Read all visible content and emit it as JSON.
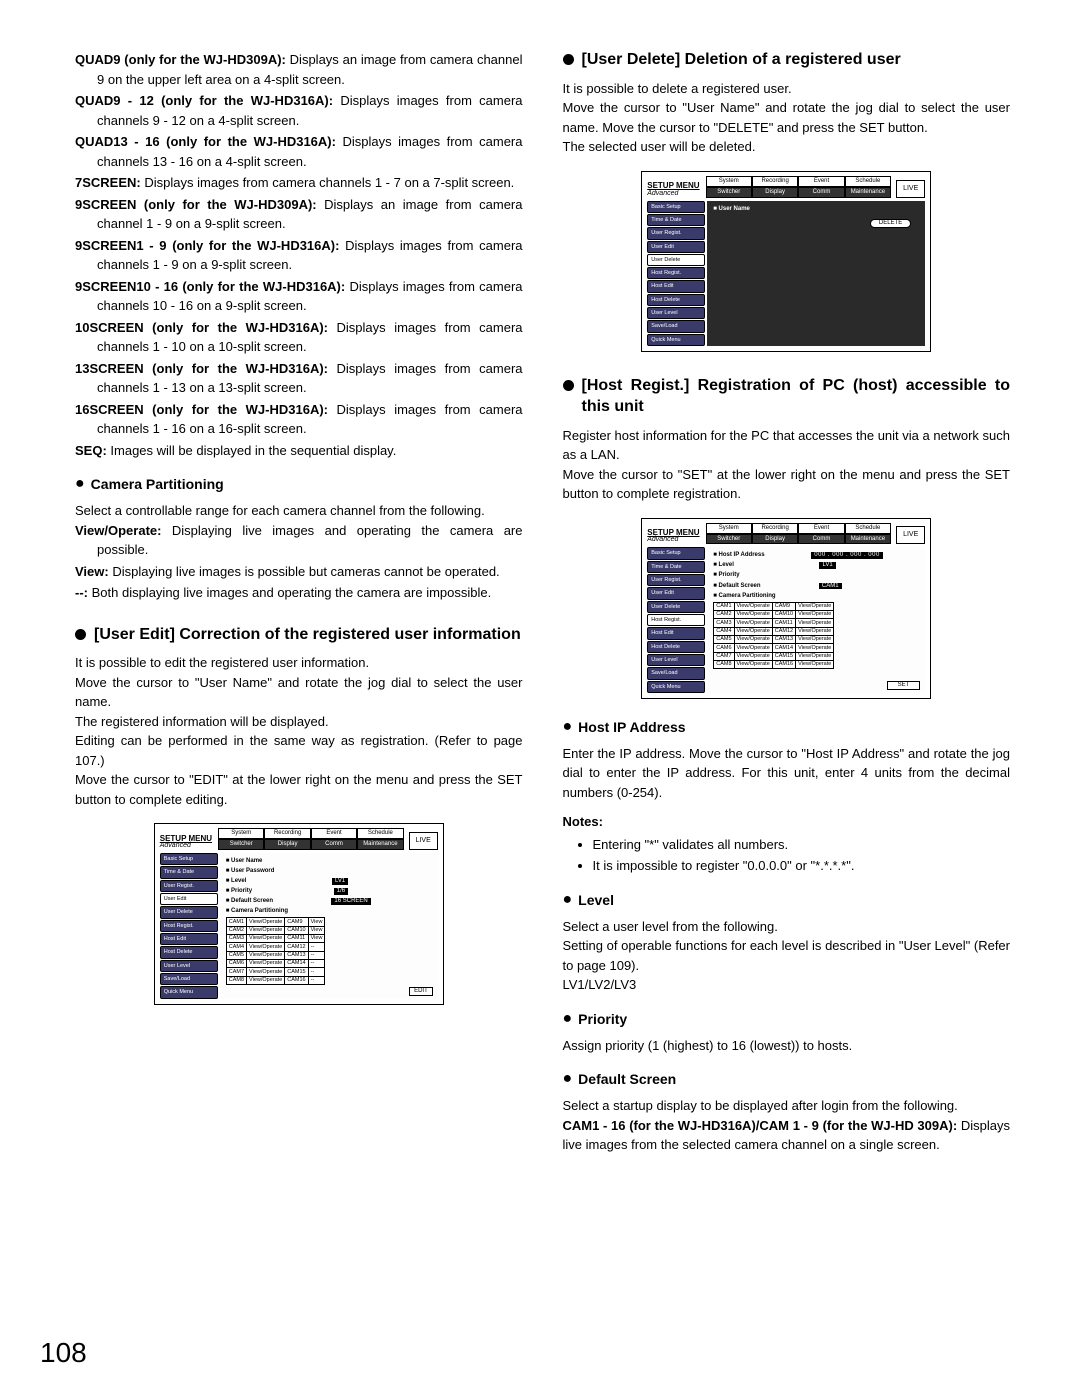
{
  "left": {
    "items": [
      {
        "term": "QUAD9 (only for the WJ-HD309A):",
        "desc": "Displays an image from camera channel 9 on the upper left area on a 4-split screen."
      },
      {
        "term": "QUAD9 - 12 (only for the WJ-HD316A):",
        "desc": "Displays images from camera channels 9 - 12 on a 4-split screen."
      },
      {
        "term": "QUAD13 - 16 (only for the WJ-HD316A):",
        "desc": "Displays images from camera channels 13 - 16 on a 4-split screen."
      },
      {
        "term": "7SCREEN:",
        "desc": "Displays images from camera channels 1 - 7 on a 7-split screen."
      },
      {
        "term": "9SCREEN (only for the WJ-HD309A):",
        "desc": "Displays an image from camera channel 1 - 9 on a 9-split screen."
      },
      {
        "term": "9SCREEN1 - 9 (only for the WJ-HD316A):",
        "desc": "Displays images from camera channels 1 - 9 on a 9-split screen."
      },
      {
        "term": "9SCREEN10 - 16 (only for the WJ-HD316A):",
        "desc": "Displays images from camera channels 10 - 16 on a 9-split screen."
      },
      {
        "term": "10SCREEN (only for the WJ-HD316A):",
        "desc": "Displays images from camera channels 1 - 10 on a 10-split screen."
      },
      {
        "term": "13SCREEN (only for the WJ-HD316A):",
        "desc": "Displays images from camera channels 1 - 13 on a 13-split screen."
      },
      {
        "term": "16SCREEN (only for the WJ-HD316A):",
        "desc": "Displays images from camera channels 1 - 16 on a 16-split screen."
      },
      {
        "term": "SEQ:",
        "desc": "Images will be displayed in the sequential display."
      }
    ],
    "camPart": {
      "head": "Camera Partitioning",
      "intro": "Select a controllable range for each camera channel from the following.",
      "opts": [
        {
          "term": "View/Operate:",
          "desc": "Displaying live images and operating the camera are possible."
        },
        {
          "term": "View:",
          "desc": "Displaying live images is possible but cameras cannot be operated."
        },
        {
          "term": "--:",
          "desc": "Both displaying live images and operating the camera are impossible."
        }
      ]
    },
    "userEdit": {
      "head": "[User Edit] Correction of the registered user information",
      "p1": "It is possible to edit the registered user information.",
      "p2": "Move the cursor to \"User Name\" and rotate the jog dial to select the user name.",
      "p3": "The registered information will be displayed.",
      "p4": "Editing can be performed in the same way as registration. (Refer to page 107.)",
      "p5": "Move the cursor to \"EDIT\" at the lower right on the menu and press the SET button to complete editing."
    }
  },
  "right": {
    "userDelete": {
      "head": "[User Delete] Deletion of a registered user",
      "p1": "It is possible to delete a registered user.",
      "p2": "Move the cursor to \"User Name\" and rotate the jog dial to select the user name. Move the cursor to \"DELETE\" and press the SET button.",
      "p3": "The selected user will be deleted."
    },
    "hostRegist": {
      "head": "[Host Regist.] Registration of PC (host) accessible to this unit",
      "p1": "Register host information for the PC that accesses the unit via a network such as a LAN.",
      "p2": "Move the cursor to \"SET\" at the lower right on the menu and press the SET button to complete registration."
    },
    "hostIp": {
      "head": "Host IP Address",
      "p": "Enter the IP address. Move the cursor to \"Host IP Address\" and rotate the jog dial to enter the IP address. For this unit, enter 4 units from the decimal numbers (0-254)."
    },
    "notes": {
      "head": "Notes:",
      "items": [
        "Entering \"*\" validates all numbers.",
        "It is impossible to register \"0.0.0.0\" or \"*.*.*.*\"."
      ]
    },
    "level": {
      "head": "Level",
      "p1": "Select a user level from the following.",
      "p2": "Setting of operable functions for each level is described in \"User Level\" (Refer to page 109).",
      "p3": "LV1/LV2/LV3"
    },
    "priority": {
      "head": "Priority",
      "p": "Assign priority (1 (highest) to 16 (lowest)) to hosts."
    },
    "defScreen": {
      "head": "Default Screen",
      "p": "Select a startup display to be displayed after login from the following.",
      "term": "CAM1 - 16 (for the WJ-HD316A)/CAM 1 - 9 (for the WJ-HD 309A):",
      "desc": "Displays live images from the selected camera channel on a single screen."
    }
  },
  "menu": {
    "title": "SETUP MENU",
    "adv": "Advanced",
    "tabs_top": [
      "System",
      "Recording",
      "Event",
      "Schedule"
    ],
    "tabs_bot": [
      "Switcher",
      "Display",
      "Comm",
      "Maintenance"
    ],
    "live": "LIVE",
    "sidebar": [
      "Basic Setup",
      "Time & Date",
      "User Regist.",
      "User Edit",
      "User Delete",
      "Host Regist.",
      "Host Edit",
      "Host Delete",
      "User Level",
      "Save/Load",
      "Quick Menu"
    ],
    "userEdit": {
      "labels": [
        "User Name",
        "User Password",
        "Level",
        "Priority",
        "Default Screen",
        "Camera Partitioning"
      ],
      "level_val": "LV1",
      "pri_val": "1/6",
      "ds_val": "16 SCREEN",
      "rows": [
        [
          "CAM1",
          "View/Operate",
          "CAM9",
          "View"
        ],
        [
          "CAM2",
          "View/Operate",
          "CAM10",
          "View"
        ],
        [
          "CAM3",
          "View/Operate",
          "CAM11",
          "View"
        ],
        [
          "CAM4",
          "View/Operate",
          "CAM12",
          "--"
        ],
        [
          "CAM5",
          "View/Operate",
          "CAM13",
          "--"
        ],
        [
          "CAM6",
          "View/Operate",
          "CAM14",
          "--"
        ],
        [
          "CAM7",
          "View/Operate",
          "CAM15",
          "--"
        ],
        [
          "CAM8",
          "View/Operate",
          "CAM16",
          "--"
        ]
      ],
      "edit": "EDIT"
    },
    "userDelete": {
      "label": "User Name",
      "btn": "DELETE"
    },
    "hostRegist": {
      "labels": [
        "Host IP Address",
        "Level",
        "Priority",
        "Default Screen",
        "Camera Partitioning"
      ],
      "ip": "000 . 000 . 000 . 000",
      "level": "LV1",
      "pri": "",
      "ds": "CAM1",
      "rows": [
        [
          "CAM1",
          "View/Operate",
          "CAM9",
          "View/Operate"
        ],
        [
          "CAM2",
          "View/Operate",
          "CAM10",
          "View/Operate"
        ],
        [
          "CAM3",
          "View/Operate",
          "CAM11",
          "View/Operate"
        ],
        [
          "CAM4",
          "View/Operate",
          "CAM12",
          "View/Operate"
        ],
        [
          "CAM5",
          "View/Operate",
          "CAM13",
          "View/Operate"
        ],
        [
          "CAM6",
          "View/Operate",
          "CAM14",
          "View/Operate"
        ],
        [
          "CAM7",
          "View/Operate",
          "CAM15",
          "View/Operate"
        ],
        [
          "CAM8",
          "View/Operate",
          "CAM16",
          "View/Operate"
        ]
      ],
      "set": "SET"
    }
  },
  "pageNumber": "108"
}
